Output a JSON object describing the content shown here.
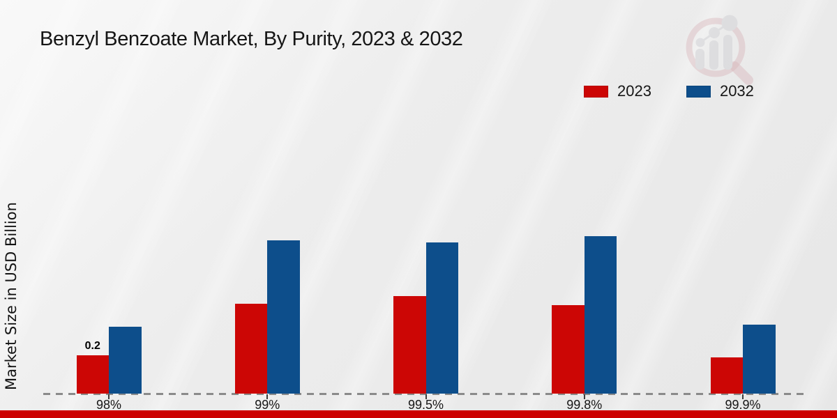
{
  "title": "Benzyl Benzoate Market, By Purity, 2023 & 2032",
  "y_axis_label": "Market Size in USD Billion",
  "legend": {
    "items": [
      {
        "label": "2023",
        "color": "#cc0605"
      },
      {
        "label": "2032",
        "color": "#0d4e8b"
      }
    ]
  },
  "chart_data": {
    "type": "bar",
    "categories": [
      "98%",
      "99%",
      "99.5%",
      "99.8%",
      "99.9%"
    ],
    "series": [
      {
        "name": "2023",
        "color": "#cc0605",
        "values": [
          0.2,
          0.47,
          0.51,
          0.46,
          0.19
        ]
      },
      {
        "name": "2032",
        "color": "#0d4e8b",
        "values": [
          0.35,
          0.8,
          0.79,
          0.82,
          0.36
        ]
      }
    ],
    "data_labels": [
      {
        "series": "2023",
        "category": "98%",
        "text": "0.2"
      }
    ],
    "title": "Benzyl Benzoate Market, By Purity, 2023 & 2032",
    "xlabel": "",
    "ylabel": "Market Size in USD Billion",
    "ylim": [
      0,
      0.9
    ],
    "grid": false,
    "legend_position": "top-right",
    "baseline_style": "dashed"
  },
  "colors": {
    "footer_strip": "#cc0000",
    "baseline_dash": "#8a8a8a",
    "background": "#e9e9e9",
    "text": "#161616"
  },
  "watermark": {
    "name": "market-research-logo"
  }
}
